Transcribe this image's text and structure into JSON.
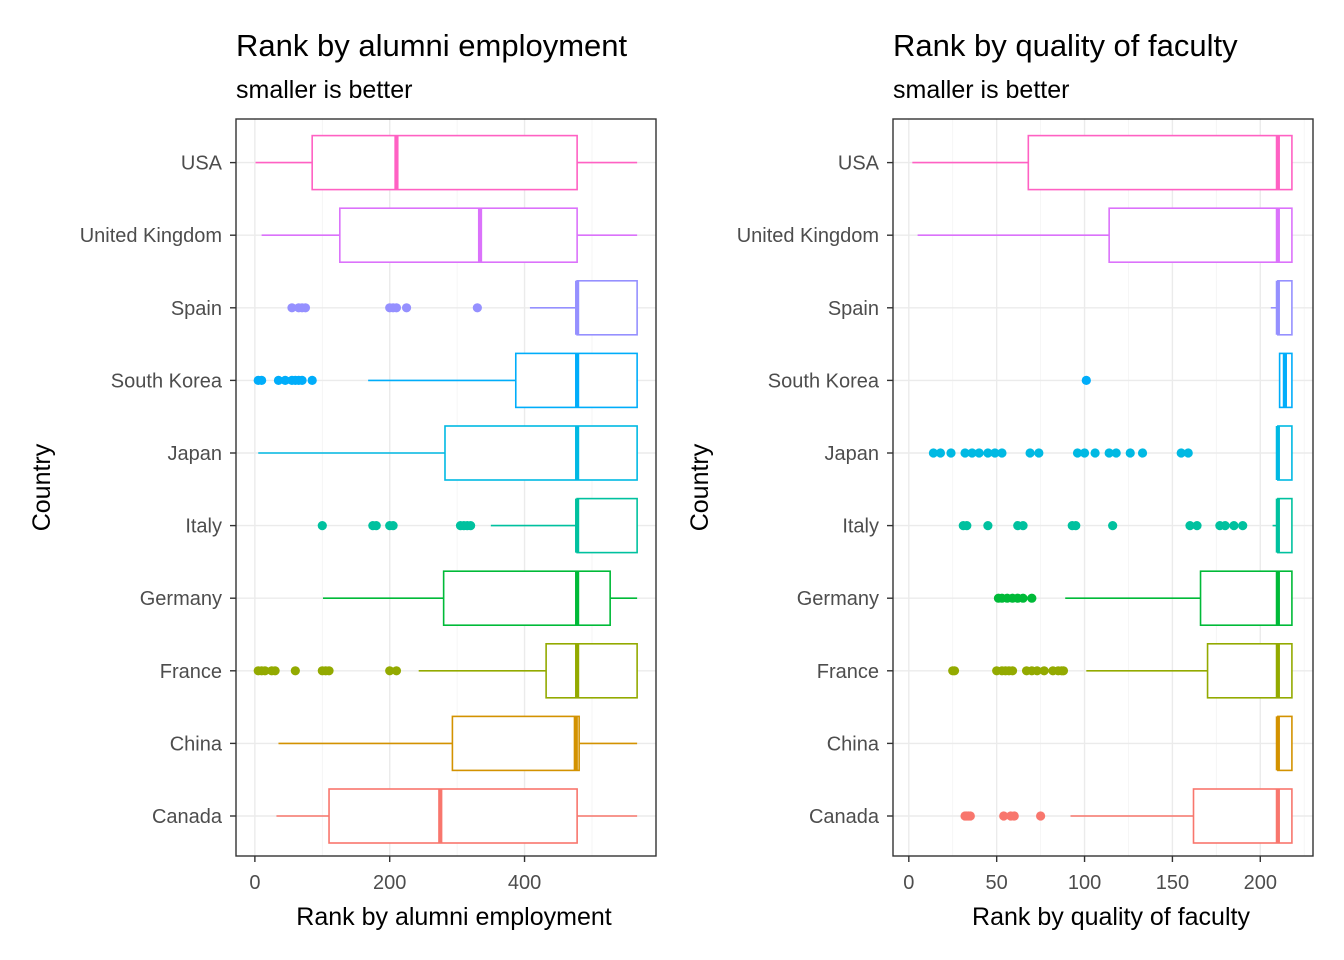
{
  "chart_data": [
    {
      "type": "boxplot",
      "title": "Rank by  alumni employment",
      "subtitle": "smaller is better",
      "xlabel": "Rank by  alumni employment",
      "ylabel": "Country",
      "orientation": "horizontal",
      "xlim": [
        -28,
        595
      ],
      "xticks": [
        0,
        200,
        400
      ],
      "xtick_labels": [
        "0",
        "200",
        "400"
      ],
      "categories": [
        "Canada",
        "China",
        "France",
        "Germany",
        "Italy",
        "Japan",
        "South Korea",
        "Spain",
        "United Kingdom",
        "USA"
      ],
      "grid": true,
      "legend": "none",
      "colors": [
        "#F8766D",
        "#D39200",
        "#93AA00",
        "#00BA38",
        "#00C19F",
        "#00B9E3",
        "#00ADFA",
        "#9590FF",
        "#DB72FB",
        "#FF61C3"
      ],
      "boxes": [
        {
          "country": "Canada",
          "whisker_low": 32,
          "q1": 110,
          "median": 275,
          "q3": 478,
          "whisker_high": 567,
          "outliers": []
        },
        {
          "country": "China",
          "whisker_low": 35,
          "q1": 293,
          "median": 476,
          "q3": 481,
          "whisker_high": 567,
          "outliers": []
        },
        {
          "country": "France",
          "whisker_low": 243,
          "q1": 432,
          "median": 478,
          "q3": 567,
          "whisker_high": 567,
          "outliers": [
            5,
            10,
            15,
            25,
            30,
            60,
            100,
            105,
            110,
            200,
            210
          ]
        },
        {
          "country": "Germany",
          "whisker_low": 101,
          "q1": 280,
          "median": 478,
          "q3": 527,
          "whisker_high": 567,
          "outliers": []
        },
        {
          "country": "Italy",
          "whisker_low": 350,
          "q1": 478,
          "median": 478,
          "q3": 567,
          "whisker_high": 567,
          "outliers": [
            100,
            175,
            180,
            200,
            205,
            305,
            310,
            315,
            320
          ]
        },
        {
          "country": "Japan",
          "whisker_low": 5,
          "q1": 282,
          "median": 478,
          "q3": 567,
          "whisker_high": 567,
          "outliers": []
        },
        {
          "country": "South Korea",
          "whisker_low": 168,
          "q1": 387,
          "median": 478,
          "q3": 567,
          "whisker_high": 567,
          "outliers": [
            5,
            10,
            35,
            45,
            55,
            60,
            65,
            70,
            85
          ]
        },
        {
          "country": "Spain",
          "whisker_low": 408,
          "q1": 478,
          "median": 478,
          "q3": 567,
          "whisker_high": 567,
          "outliers": [
            55,
            65,
            70,
            75,
            200,
            205,
            210,
            225,
            330
          ]
        },
        {
          "country": "United Kingdom",
          "whisker_low": 10,
          "q1": 126,
          "median": 334,
          "q3": 478,
          "whisker_high": 567,
          "outliers": []
        },
        {
          "country": "USA",
          "whisker_low": 1,
          "q1": 85,
          "median": 210,
          "q3": 478,
          "whisker_high": 567,
          "outliers": []
        }
      ]
    },
    {
      "type": "boxplot",
      "title": "Rank by  quality of faculty",
      "subtitle": "smaller is better",
      "xlabel": "Rank by  quality of faculty",
      "ylabel": "Country",
      "orientation": "horizontal",
      "xlim": [
        -9,
        230
      ],
      "xticks": [
        0,
        50,
        100,
        150,
        200
      ],
      "xtick_labels": [
        "0",
        "50",
        "100",
        "150",
        "200"
      ],
      "categories": [
        "Canada",
        "China",
        "France",
        "Germany",
        "Italy",
        "Japan",
        "South Korea",
        "Spain",
        "United Kingdom",
        "USA"
      ],
      "grid": true,
      "legend": "none",
      "colors": [
        "#F8766D",
        "#D39200",
        "#93AA00",
        "#00BA38",
        "#00C19F",
        "#00B9E3",
        "#00ADFA",
        "#9590FF",
        "#DB72FB",
        "#FF61C3"
      ],
      "boxes": [
        {
          "country": "Canada",
          "whisker_low": 92,
          "q1": 162,
          "median": 210,
          "q3": 218,
          "whisker_high": 218,
          "outliers": [
            32,
            33,
            34,
            35,
            54,
            58,
            60,
            75
          ]
        },
        {
          "country": "China",
          "whisker_low": 210,
          "q1": 210,
          "median": 210,
          "q3": 218,
          "whisker_high": 218,
          "outliers": []
        },
        {
          "country": "France",
          "whisker_low": 101,
          "q1": 170,
          "median": 210,
          "q3": 218,
          "whisker_high": 218,
          "outliers": [
            25,
            26,
            50,
            53,
            55,
            57,
            59,
            67,
            70,
            73,
            77,
            82,
            85,
            87,
            88
          ]
        },
        {
          "country": "Germany",
          "whisker_low": 89,
          "q1": 166,
          "median": 210,
          "q3": 218,
          "whisker_high": 218,
          "outliers": [
            51,
            53,
            56,
            59,
            62,
            65,
            70
          ]
        },
        {
          "country": "Italy",
          "whisker_low": 207,
          "q1": 210,
          "median": 210,
          "q3": 218,
          "whisker_high": 218,
          "outliers": [
            31,
            33,
            45,
            62,
            65,
            93,
            95,
            116,
            160,
            164,
            177,
            180,
            185,
            190
          ]
        },
        {
          "country": "Japan",
          "whisker_low": 210,
          "q1": 210,
          "median": 210,
          "q3": 218,
          "whisker_high": 218,
          "outliers": [
            14,
            18,
            24,
            32,
            36,
            40,
            45,
            49,
            53,
            69,
            74,
            96,
            100,
            106,
            114,
            118,
            126,
            133,
            155,
            159
          ]
        },
        {
          "country": "South Korea",
          "whisker_low": 211,
          "q1": 211,
          "median": 214,
          "q3": 218,
          "whisker_high": 218,
          "outliers": [
            101
          ]
        },
        {
          "country": "Spain",
          "whisker_low": 206,
          "q1": 210,
          "median": 210,
          "q3": 218,
          "whisker_high": 218,
          "outliers": []
        },
        {
          "country": "United Kingdom",
          "whisker_low": 5,
          "q1": 114,
          "median": 210,
          "q3": 218,
          "whisker_high": 218,
          "outliers": []
        },
        {
          "country": "USA",
          "whisker_low": 2,
          "q1": 68,
          "median": 210,
          "q3": 218,
          "whisker_high": 218,
          "outliers": []
        }
      ]
    }
  ]
}
